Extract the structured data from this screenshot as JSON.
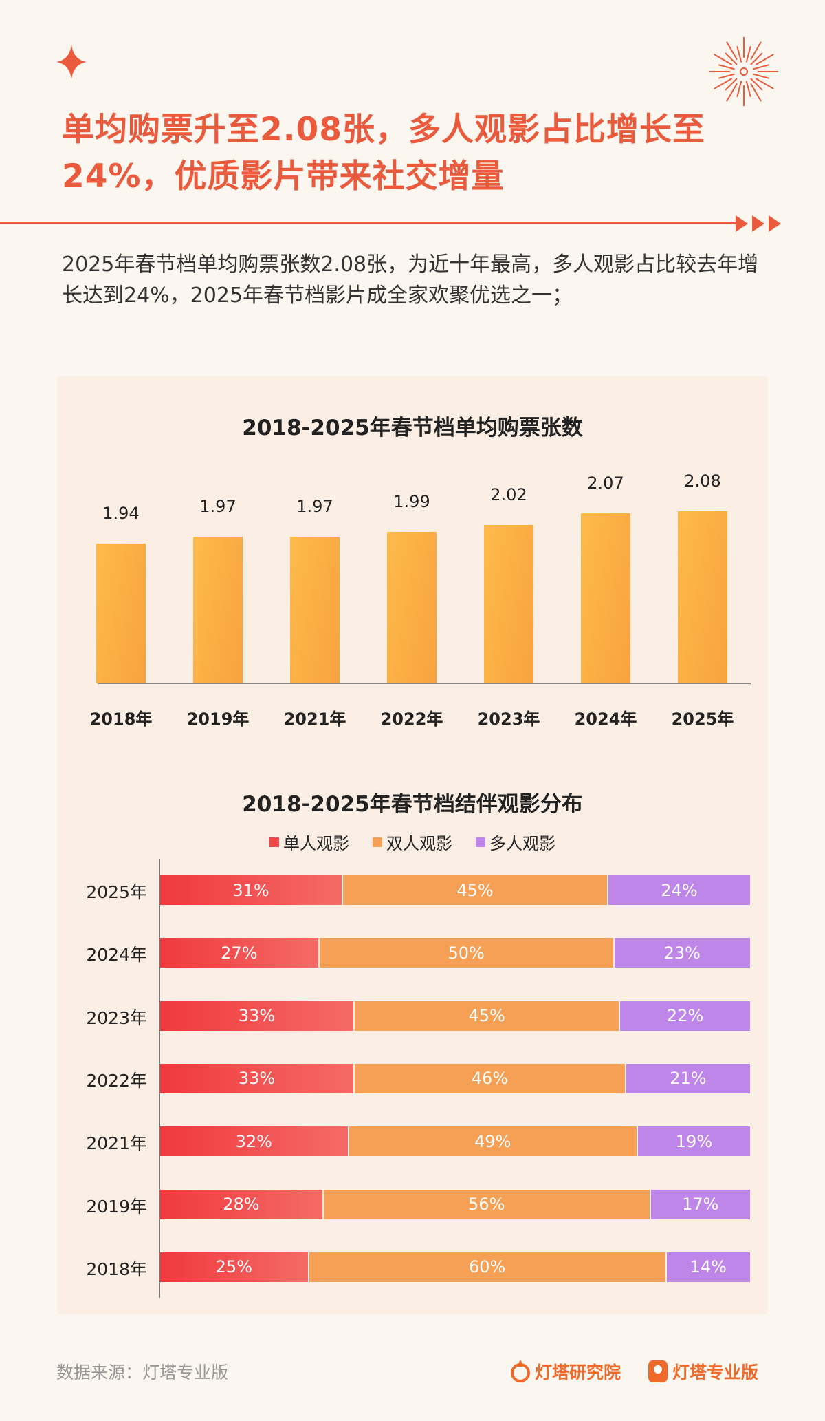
{
  "title": "单均购票升至2.08张，多人观影占比增长至24%，优质影片带来社交增量",
  "body": "2025年春节档单均购票张数2.08张，为近十年最高，多人观影占比较去年增长达到24%，2025年春节档影片成全家欢聚优选之一；",
  "colors": {
    "accent": "#ea5a3d",
    "bar": "#fbb044",
    "single": "#f0484a",
    "double": "#f5a055",
    "multi": "#bf86ea"
  },
  "chart_data": [
    {
      "type": "bar",
      "title": "2018-2025年春节档单均购票张数",
      "categories": [
        "2018年",
        "2019年",
        "2021年",
        "2022年",
        "2023年",
        "2024年",
        "2025年"
      ],
      "values": [
        1.94,
        1.97,
        1.97,
        1.99,
        2.02,
        2.07,
        2.08
      ],
      "value_labels": [
        "1.94",
        "1.97",
        "1.97",
        "1.99",
        "2.02",
        "2.07",
        "2.08"
      ],
      "grid": false
    },
    {
      "type": "bar",
      "stacked": true,
      "orientation": "horizontal",
      "title": "2018-2025年春节档结伴观影分布",
      "legend_position": "top",
      "categories": [
        "2025年",
        "2024年",
        "2023年",
        "2022年",
        "2021年",
        "2019年",
        "2018年"
      ],
      "series": [
        {
          "name": "单人观影",
          "values": [
            31,
            27,
            33,
            33,
            32,
            28,
            25
          ],
          "labels": [
            "31%",
            "27%",
            "33%",
            "33%",
            "32%",
            "28%",
            "25%"
          ]
        },
        {
          "name": "双人观影",
          "values": [
            45,
            50,
            45,
            46,
            49,
            56,
            60
          ],
          "labels": [
            "45%",
            "50%",
            "45%",
            "46%",
            "49%",
            "56%",
            "60%"
          ]
        },
        {
          "name": "多人观影",
          "values": [
            24,
            23,
            22,
            21,
            19,
            17,
            14
          ],
          "labels": [
            "24%",
            "23%",
            "22%",
            "21%",
            "19%",
            "17%",
            "14%"
          ]
        }
      ]
    }
  ],
  "footer": {
    "source": "数据来源：灯塔专业版",
    "logo1": "灯塔研究院",
    "logo2": "灯塔专业版"
  }
}
